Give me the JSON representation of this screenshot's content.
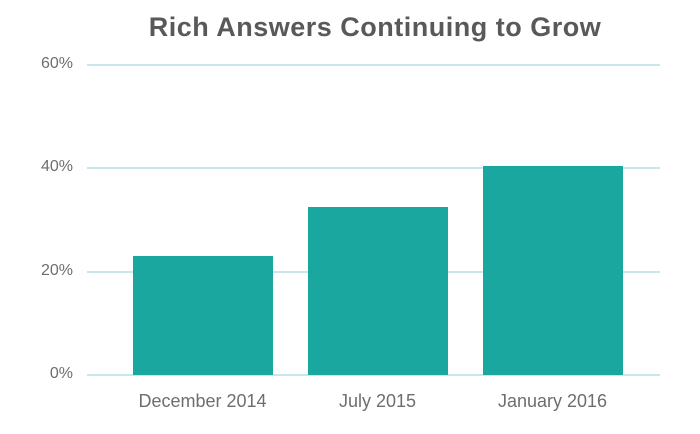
{
  "chart_data": {
    "type": "bar",
    "title": "Rich Answers Continuing to Grow",
    "categories": [
      "December 2014",
      "July 2015",
      "January 2016"
    ],
    "values": [
      23,
      32.5,
      40.5
    ],
    "xlabel": "",
    "ylabel": "",
    "ylim": [
      0,
      60
    ],
    "yticks": [
      0,
      20,
      40,
      60
    ],
    "ytick_labels": [
      "0%",
      "20%",
      "40%",
      "60%"
    ],
    "grid": true,
    "legend": false,
    "colors": {
      "bar": "#1aa79f",
      "gridline": "#c9e6ec",
      "title": "#58595b",
      "axis_label": "#6d6e71"
    }
  }
}
